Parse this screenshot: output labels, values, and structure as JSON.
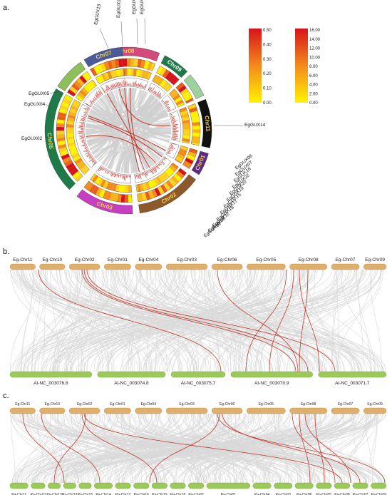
{
  "panels": {
    "a": "a.",
    "b": "b.",
    "c": "c."
  },
  "colors": {
    "eg_chr": "#dfb06b",
    "at_chr": "#9bc95a",
    "pa_chr": "#9bc95a",
    "link_bg": "#d9d9d9",
    "link_hl": "#c23a2c"
  },
  "circos": {
    "chromosomes": [
      {
        "label": "Chr08",
        "color": "#d44a7c",
        "text_color": "#f6d24a"
      },
      {
        "label": "Chr09",
        "color": "#1f7a4a",
        "text_color": "#ffffff"
      },
      {
        "label": "",
        "color": "#9fd0a0",
        "text_color": "#ffffff"
      },
      {
        "label": "Chr11",
        "color": "#111111",
        "text_color": "#f6d24a"
      },
      {
        "label": "Chr01",
        "color": "#5a2a8a",
        "text_color": "#f6d24a"
      },
      {
        "label": "Chr02",
        "color": "#8c5a2a",
        "text_color": "#f6d24a"
      },
      {
        "label": "Chr03",
        "color": "#c63fc0",
        "text_color": "#f6d24a"
      },
      {
        "label": "Chr05",
        "color": "#1f7a4a",
        "text_color": "#f6d24a"
      },
      {
        "label": "",
        "color": "#8fbf5a",
        "text_color": "#ffffff"
      },
      {
        "label": "Chr07",
        "color": "#4a5a9a",
        "text_color": "#f6d24a"
      }
    ],
    "genes": [
      "EgGUX13",
      "EgGUX10",
      "EgGUX11",
      "EgGUX03",
      "EgGUX05",
      "EgGUX04",
      "EgGUX02",
      "EgGUX14",
      "EgGUX06",
      "EgGUX07",
      "EgGUX16",
      "EgGUX22",
      "EgGUX20",
      "EgGUX19",
      "EgGUX15",
      "EgGUX17",
      "EgGUX18",
      "EgGUX12",
      "EgGUX08",
      "EgGUX09"
    ],
    "legend1_ticks": [
      "0.50",
      "0.40",
      "0.30",
      "0.20",
      "0.10",
      "0.00"
    ],
    "legend2_ticks": [
      "16.00",
      "14.00",
      "12.00",
      "10.00",
      "8.00",
      "6.00",
      "4.00",
      "2.00",
      "0.00"
    ]
  },
  "panel_b": {
    "top": [
      "Eg-Chr11",
      "Eg-Chr10",
      "Eg-Chr02",
      "Eg-Chr01",
      "Eg-Chr04",
      "Eg-Chr03",
      "Eg-Chr06",
      "Eg-Chr05",
      "Eg-Chr08",
      "Eg-Chr07",
      "Eg-Chr09"
    ],
    "bottom": [
      "At-NC_003076.8",
      "At-NC_003074.8",
      "At-NC_003075.7",
      "At-NC_003070.9",
      "At-NC_003071.7"
    ]
  },
  "panel_c": {
    "top": [
      "Eg-Chr11",
      "Eg-Chr10",
      "Eg-Chr02",
      "Eg-Chr01",
      "Eg-Chr04",
      "Eg-Chr03",
      "Eg-Chr06",
      "Eg-Chr05",
      "Eg-Chr08",
      "Eg-Chr07",
      "Eg-Chr09"
    ],
    "bottom": [
      "Pa-Chr11",
      "Pa-Chr10",
      "Pa-Chr13",
      "Pa-Chr12",
      "Pa-Chr15",
      "Pa-Chr14",
      "Pa-Chr17",
      "Pa-Chr16",
      "Pa-Chr19",
      "Pa-Chr18",
      "Pa-Chr02",
      "Pa-Chr01",
      "Pa-Chr04",
      "Pa-Chr03",
      "Pa-Chr06",
      "Pa-Chr05",
      "Pa-Chr08",
      "Pa-Chr07",
      "Pa-Chr09"
    ]
  }
}
